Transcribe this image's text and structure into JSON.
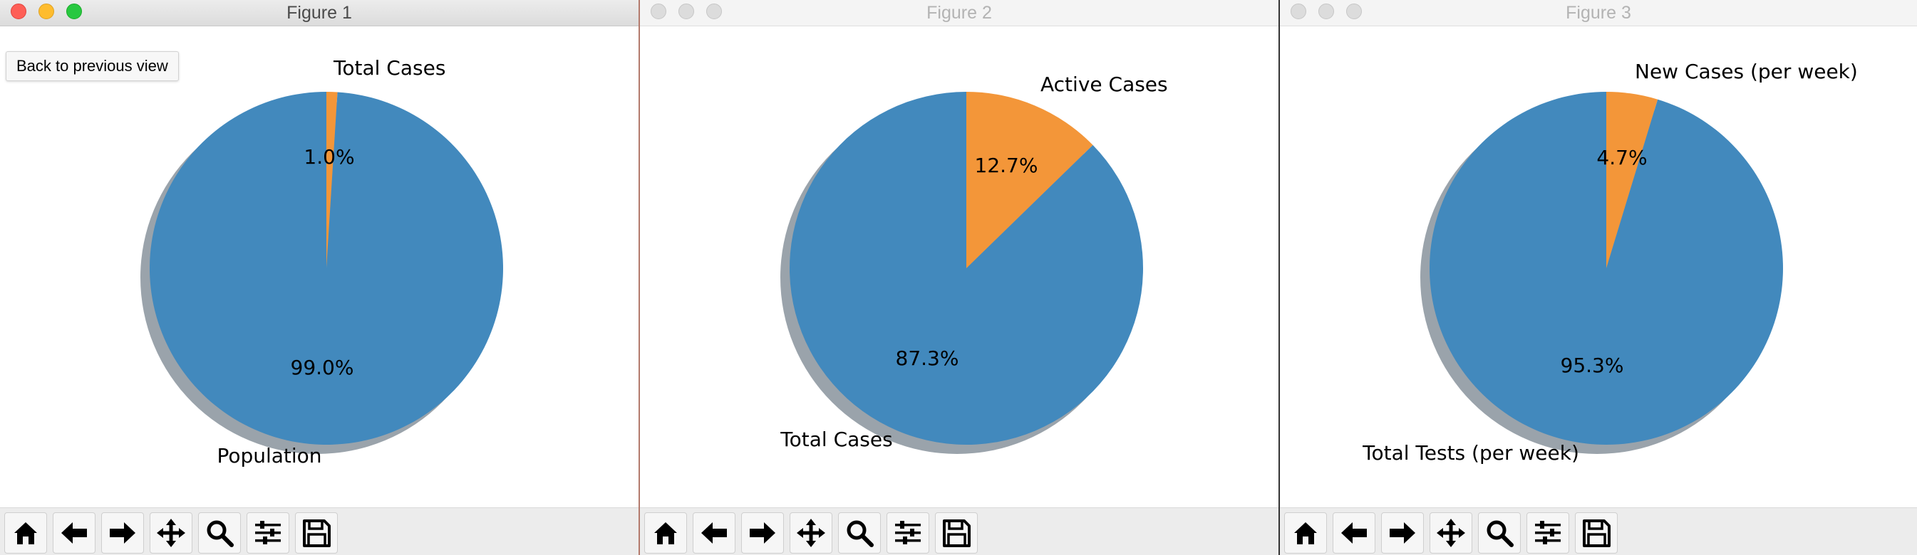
{
  "windows": [
    {
      "title": "Figure 1",
      "active": true,
      "tooltip": "Back to previous view"
    },
    {
      "title": "Figure 2",
      "active": false
    },
    {
      "title": "Figure 3",
      "active": false
    }
  ],
  "toolbar_icons": [
    "home-icon",
    "back-arrow-icon",
    "forward-arrow-icon",
    "pan-move-icon",
    "zoom-magnifier-icon",
    "configure-subplots-icon",
    "save-floppy-icon"
  ],
  "colors": {
    "blue": "#4289bd",
    "orange": "#f39639",
    "shadow": "#9aa3ab"
  },
  "chart_data": [
    {
      "type": "pie",
      "labels": [
        "Total Cases",
        "Population"
      ],
      "values": [
        1.0,
        99.0
      ],
      "pct_labels": [
        "1.0%",
        "99.0%"
      ],
      "colors": [
        "#f39639",
        "#4289bd"
      ],
      "shadow": true
    },
    {
      "type": "pie",
      "labels": [
        "Active Cases",
        "Total Cases"
      ],
      "values": [
        12.7,
        87.3
      ],
      "pct_labels": [
        "12.7%",
        "87.3%"
      ],
      "colors": [
        "#f39639",
        "#4289bd"
      ],
      "shadow": true
    },
    {
      "type": "pie",
      "labels": [
        "New Cases (per week)",
        "Total Tests (per week)"
      ],
      "values": [
        4.7,
        95.3
      ],
      "pct_labels": [
        "4.7%",
        "95.3%"
      ],
      "colors": [
        "#f39639",
        "#4289bd"
      ],
      "shadow": true
    }
  ]
}
